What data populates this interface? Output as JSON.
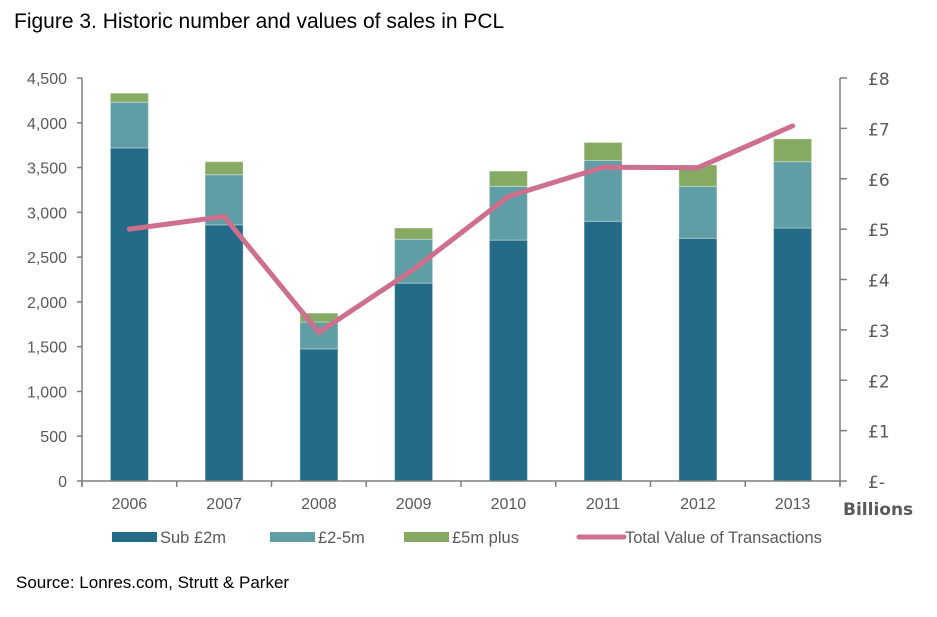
{
  "title": "Figure 3. Historic number and values of sales in PCL",
  "source": "Source: Lonres.com, Strutt & Parker",
  "chart_data": {
    "type": "bar",
    "stacked": true,
    "title": "Figure 3. Historic number and values of sales in PCL",
    "categories": [
      "2006",
      "2007",
      "2008",
      "2009",
      "2010",
      "2011",
      "2012",
      "2013"
    ],
    "series": [
      {
        "name": "Sub £2m",
        "type": "bar",
        "axis": "left",
        "color": "#236b87",
        "values": [
          3720,
          2860,
          1475,
          2210,
          2690,
          2900,
          2710,
          2825
        ]
      },
      {
        "name": "£2-5m",
        "type": "bar",
        "axis": "left",
        "color": "#5f9ea5",
        "values": [
          510,
          560,
          300,
          490,
          600,
          680,
          580,
          740
        ]
      },
      {
        "name": "£5m plus",
        "type": "bar",
        "axis": "left",
        "color": "#86aa64",
        "values": [
          100,
          145,
          100,
          125,
          170,
          200,
          240,
          255
        ]
      },
      {
        "name": "Total Value of Transactions",
        "type": "line",
        "axis": "right",
        "color": "#cd6f8d",
        "values": [
          5.0,
          5.25,
          2.95,
          4.2,
          5.65,
          6.23,
          6.22,
          7.05
        ]
      }
    ],
    "y_left": {
      "ylim": [
        0,
        4500
      ],
      "ticks": [
        0,
        500,
        1000,
        1500,
        2000,
        2500,
        3000,
        3500,
        4000,
        4500
      ],
      "tick_labels": [
        "0",
        "500",
        "1,000",
        "1,500",
        "2,000",
        "2,500",
        "3,000",
        "3,500",
        "4,000",
        "4,500"
      ]
    },
    "y_right": {
      "ylim": [
        0,
        8
      ],
      "ticks": [
        0,
        1,
        2,
        3,
        4,
        5,
        6,
        7,
        8
      ],
      "tick_labels": [
        "£-",
        "£1",
        "£2",
        "£3",
        "£4",
        "£5",
        "£6",
        "£7",
        "£8"
      ],
      "label": "Billions"
    },
    "xlabel": "",
    "grid": false,
    "legend_position": "bottom"
  }
}
